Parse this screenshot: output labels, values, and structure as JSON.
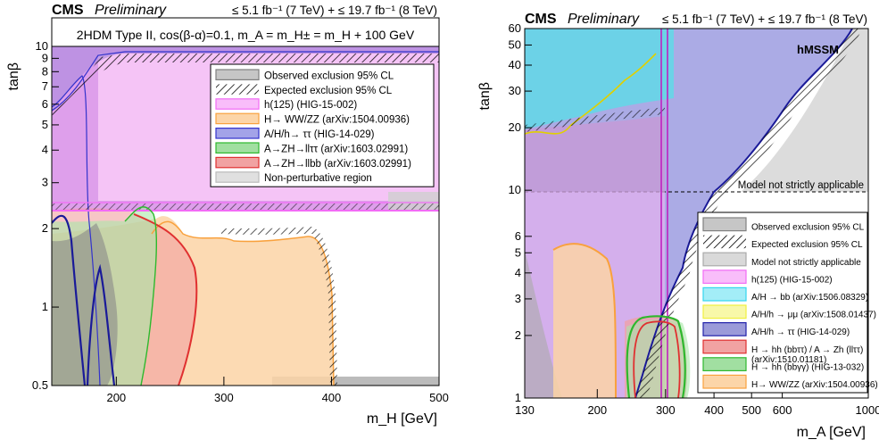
{
  "figures": [
    {
      "header": {
        "cms": "CMS",
        "prelim": "Preliminary",
        "lumi": "≤ 5.1 fb⁻¹ (7 TeV) + ≤ 19.7 fb⁻¹ (8 TeV)"
      },
      "subtitle": "2HDM Type II, cos(β-α)=0.1, m_A = m_H± = m_H + 100 GeV",
      "legend": [
        {
          "label": "Observed exclusion 95% CL",
          "color": "#808080"
        },
        {
          "label": "Expected exclusion 95% CL",
          "color": "#000000"
        },
        {
          "label": "h(125) (HIG-15-002)",
          "color": "#f26cf5"
        },
        {
          "label": "H→ WW/ZZ (arXiv:1504.00936)",
          "color": "#f9a13d"
        },
        {
          "label": "A/H/h→ ττ (HIG-14-029)",
          "color": "#3333cc"
        },
        {
          "label": "A→ZH→llττ (arXiv:1603.02991)",
          "color": "#2eb82e"
        },
        {
          "label": "A→ZH→llbb (arXiv:1603.02991)",
          "color": "#e03030"
        },
        {
          "label": "Non-perturbative region",
          "color": "#bbbbbb"
        }
      ]
    },
    {
      "header": {
        "cms": "CMS",
        "prelim": "Preliminary",
        "lumi": "≤ 5.1 fb⁻¹ (7 TeV) + ≤ 19.7 fb⁻¹ (8 TeV)"
      },
      "scenario": "hMSSM",
      "model_note": "Model not strictly applicable",
      "legend": [
        {
          "label": "Observed exclusion 95% CL",
          "color": "#808080"
        },
        {
          "label": "Expected exclusion 95% CL",
          "color": "#000000"
        },
        {
          "label": "Model not strictly applicable",
          "color": "#aaaaaa"
        },
        {
          "label": "h(125) (HIG-15-002)",
          "color": "#f26cf5"
        },
        {
          "label": "A/H → bb (arXiv:1506.08329)",
          "color": "#33d6ee"
        },
        {
          "label": "A/H/h → μμ (arXiv:1508.01437)",
          "color": "#f0f040"
        },
        {
          "label": "A/H/h → ττ  (HIG-14-029)",
          "color": "#2222aa"
        },
        {
          "label": "H → hh (bbττ) / A → Zh (llττ)",
          "label2": "(arXiv:1510.01181)",
          "color": "#e03030"
        },
        {
          "label": "H → hh (bbγγ) (HIG-13-032)",
          "color": "#2eb82e"
        },
        {
          "label": "H→ WW/ZZ (arXiv:1504.00936)",
          "color": "#f9a13d"
        }
      ]
    }
  ],
  "chart_data": [
    {
      "type": "area",
      "xlabel": "m_H [GeV]",
      "ylabel": "tanβ",
      "xlim": [
        140,
        500
      ],
      "ylim": [
        0.5,
        10
      ],
      "yscale": "log",
      "x_ticks": [
        200,
        300,
        400,
        500
      ],
      "y_ticks": [
        0.5,
        1,
        2,
        3,
        4,
        5,
        6,
        7,
        8,
        9,
        10
      ],
      "regions": [
        {
          "name": "h(125) (HIG-15-002)",
          "color": "#f26cf5",
          "x": [
            140,
            500,
            500,
            140
          ],
          "y": [
            10,
            10,
            2.45,
            2.45
          ]
        },
        {
          "name": "Non-perturbative region",
          "color": "#bbbbbb",
          "x": [
            350,
            500,
            500,
            350
          ],
          "y": [
            0.55,
            0.55,
            0.5,
            0.5
          ]
        },
        {
          "name": "A/H/h→ ττ (HIG-14-029)",
          "color": "#3333cc",
          "x": [
            140,
            150,
            160,
            170,
            175,
            185,
            200,
            220,
            250,
            300,
            400,
            500,
            500,
            140
          ],
          "y": [
            6.8,
            6.0,
            6.3,
            7.0,
            8.0,
            8.7,
            9.0,
            9.2,
            9.5,
            9.8,
            10,
            10,
            10,
            10
          ]
        },
        {
          "name": "H→ WW/ZZ (arXiv:1504.00936)",
          "color": "#f9a13d",
          "x": [
            140,
            175,
            190,
            210,
            230,
            250,
            270,
            300,
            330,
            350,
            365,
            372,
            376,
            376,
            365,
            350,
            300,
            250,
            200,
            140
          ],
          "y": [
            2.1,
            2.3,
            2.2,
            2.1,
            2.0,
            2.2,
            2.0,
            1.9,
            1.95,
            2.0,
            1.9,
            1.5,
            1.0,
            0.5,
            0.5,
            0.5,
            0.5,
            0.5,
            0.5,
            0.5
          ]
        },
        {
          "name": "A→ZH→llττ (arXiv:1603.02991)",
          "color": "#2eb82e",
          "x": [
            140,
            170,
            200,
            220,
            230,
            230,
            220,
            200,
            180,
            160,
            140
          ],
          "y": [
            2.1,
            2.2,
            2.4,
            2.8,
            2.5,
            0.5,
            0.6,
            0.8,
            1.2,
            1.5,
            1.8
          ]
        },
        {
          "name": "A→ZH→llbb (arXiv:1603.02991)",
          "color": "#e03030",
          "x": [
            140,
            160,
            180,
            200,
            215,
            225,
            222,
            210,
            195,
            175,
            155,
            140
          ],
          "y": [
            2.45,
            2.5,
            2.4,
            2.2,
            2.0,
            1.7,
            1.2,
            0.9,
            0.7,
            0.6,
            0.55,
            0.55
          ]
        }
      ]
    },
    {
      "type": "area",
      "xlabel": "m_A [GeV]",
      "ylabel": "tanβ",
      "xlim": [
        130,
        1000
      ],
      "ylim": [
        1,
        60
      ],
      "xscale": "log",
      "yscale": "log",
      "x_ticks": [
        130,
        200,
        300,
        400,
        500,
        600,
        1000
      ],
      "y_ticks": [
        1,
        2,
        3,
        4,
        5,
        6,
        10,
        20,
        30,
        40,
        50,
        60
      ],
      "regions": [
        {
          "name": "A/H/h → ττ  (HIG-14-029)",
          "color": "#2222aa",
          "x": [
            130,
            200,
            300,
            350,
            400,
            500,
            600,
            700,
            800,
            900,
            1000,
            130
          ],
          "y": [
            60,
            60,
            60,
            60,
            60,
            60,
            60,
            60,
            60,
            60,
            60,
            60
          ]
        },
        {
          "name": "h(125) (HIG-15-002)",
          "color": "#f26cf5",
          "x": [
            130,
            310,
            320,
            130
          ],
          "y": [
            60,
            60,
            1,
            1
          ]
        },
        {
          "name": "A/H → bb (arXiv:1506.08329)",
          "color": "#33d6ee",
          "x": [
            130,
            400,
            400,
            300,
            250,
            200,
            160,
            130
          ],
          "y": [
            60,
            60,
            32,
            28,
            24,
            21,
            20,
            20
          ]
        },
        {
          "name": "A/H/h → μμ (arXiv:1508.01437)",
          "color": "#f0f040",
          "x": [
            140,
            160,
            200,
            250,
            300
          ],
          "y": [
            20,
            17,
            22,
            30,
            40
          ]
        },
        {
          "name": "H → hh (bbττ) / A → Zh (llττ)",
          "color": "#e03030",
          "x": [
            235,
            260,
            300,
            340,
            350,
            340,
            300,
            260,
            235
          ],
          "y": [
            2.6,
            2.7,
            2.7,
            2.6,
            1.5,
            1.0,
            1.0,
            1.0,
            1.2
          ]
        },
        {
          "name": "H → hh (bbγγ) (HIG-13-032)",
          "color": "#2eb82e",
          "x": [
            235,
            260,
            300,
            340,
            350,
            340,
            300,
            260,
            235
          ],
          "y": [
            2.7,
            2.6,
            2.5,
            2.6,
            1.5,
            1.0,
            1.0,
            1.0,
            1.3
          ]
        },
        {
          "name": "H→ WW/ZZ (arXiv:1504.00936)",
          "color": "#f9a13d",
          "x": [
            145,
            160,
            180,
            200,
            230,
            240,
            230,
            200,
            160,
            145
          ],
          "y": [
            4.5,
            5.0,
            4.8,
            4.0,
            3.0,
            2.0,
            1.0,
            1.0,
            1.0,
            2.0
          ]
        }
      ]
    }
  ]
}
